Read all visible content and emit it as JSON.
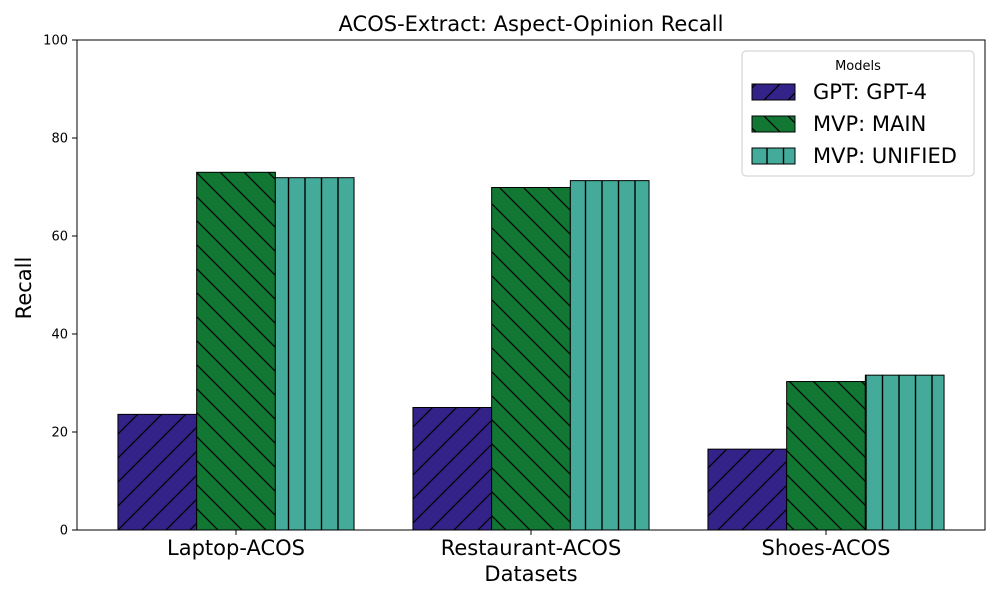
{
  "chart_data": {
    "type": "bar",
    "title": "ACOS-Extract: Aspect-Opinion Recall",
    "xlabel": "Datasets",
    "ylabel": "Recall",
    "ylim": [
      0,
      100
    ],
    "yticks": [
      0,
      20,
      40,
      60,
      80,
      100
    ],
    "categories": [
      "Laptop-ACOS",
      "Restaurant-ACOS",
      "Shoes-ACOS"
    ],
    "legend": {
      "title": "Models",
      "position": "top-right"
    },
    "series": [
      {
        "name": "GPT: GPT-4",
        "color": "#332288",
        "hatch": "forward-diagonal",
        "values": [
          23.6,
          25.0,
          16.5
        ]
      },
      {
        "name": "MVP: MAIN",
        "color": "#117733",
        "hatch": "back-diagonal",
        "values": [
          73.0,
          69.9,
          30.3
        ]
      },
      {
        "name": "MVP: UNIFIED",
        "color": "#44AA99",
        "hatch": "vertical",
        "values": [
          71.9,
          71.3,
          31.6
        ]
      }
    ]
  }
}
